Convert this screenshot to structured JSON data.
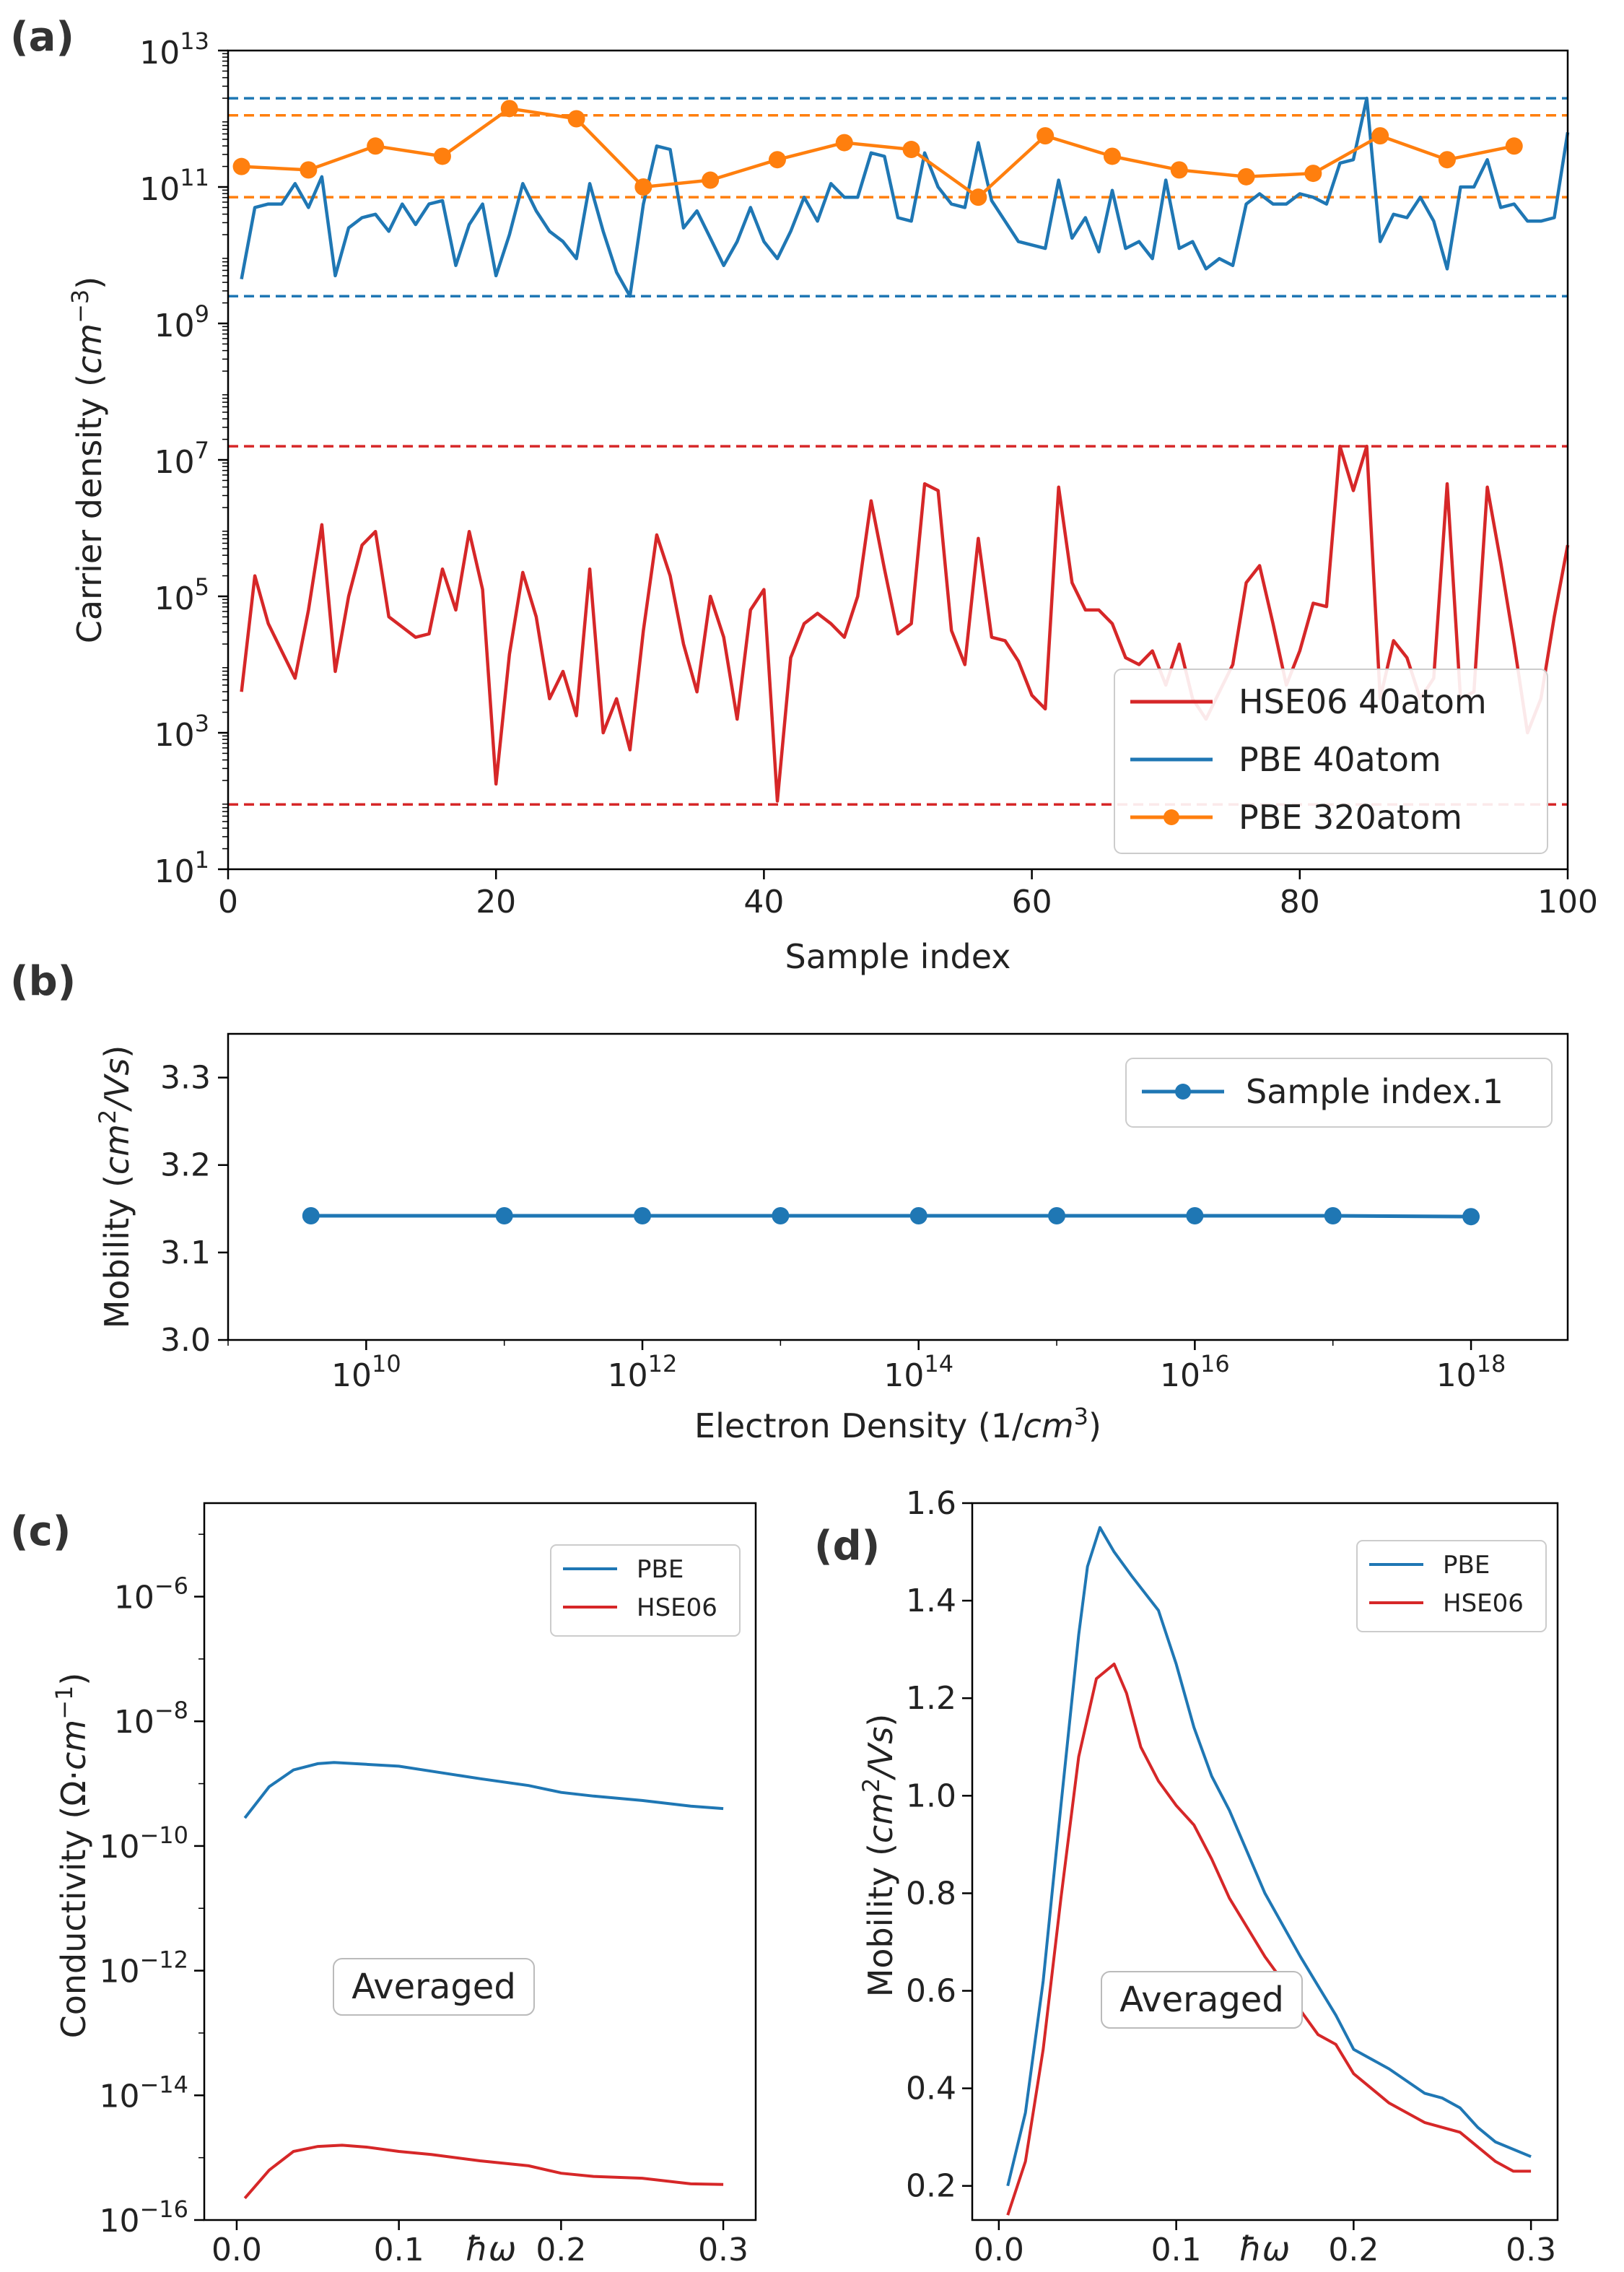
{
  "chart_data": [
    {
      "panel": "(a)",
      "type": "line",
      "xlabel": "Sample index",
      "ylabel_main": "Carrier density (",
      "ylabel_unit": "cm",
      "ylabel_exp": "−3",
      "ylabel_close": ")",
      "yscale": "log",
      "xlim": [
        0,
        100
      ],
      "ylim_exp": [
        1,
        13
      ],
      "x_ticks": [
        "0",
        "20",
        "40",
        "60",
        "80",
        "100"
      ],
      "y_tick_exps": [
        "1",
        "3",
        "5",
        "7",
        "9",
        "11",
        "13"
      ],
      "colors": {
        "hse": "#d62728",
        "pbe": "#1f77b4",
        "pbe320": "#ff7f0e"
      },
      "legend": [
        "HSE06 40atom",
        "PBE 40atom",
        "PBE 320atom"
      ],
      "reference_lines": [
        {
          "series": "PBE 40atom",
          "log10": 12.3
        },
        {
          "series": "PBE 40atom",
          "log10": 9.4
        },
        {
          "series": "PBE 320atom",
          "log10": 12.05
        },
        {
          "series": "PBE 320atom",
          "log10": 10.85
        },
        {
          "series": "HSE06 40atom",
          "log10": 7.2
        },
        {
          "series": "HSE06 40atom",
          "log10": 1.95
        }
      ],
      "series": [
        {
          "name": "HSE06 40atom",
          "x": [
            1,
            2,
            3,
            4,
            5,
            6,
            7,
            8,
            9,
            10,
            11,
            12,
            13,
            14,
            15,
            16,
            17,
            18,
            19,
            20,
            21,
            22,
            23,
            24,
            25,
            26,
            27,
            28,
            29,
            30,
            31,
            32,
            33,
            34,
            35,
            36,
            37,
            38,
            39,
            40,
            41,
            42,
            43,
            44,
            45,
            46,
            47,
            48,
            49,
            50,
            51,
            52,
            53,
            54,
            55,
            56,
            57,
            58,
            59,
            60,
            61,
            62,
            63,
            64,
            65,
            66,
            67,
            68,
            69,
            70,
            71,
            72,
            73,
            74,
            75,
            76,
            77,
            78,
            79,
            80,
            81,
            82,
            83,
            84,
            85,
            86,
            87,
            88,
            89,
            90,
            91,
            92,
            93,
            94,
            95,
            96,
            97,
            98,
            99,
            100
          ],
          "log10_y": [
            3.6,
            5.3,
            4.6,
            4.2,
            3.8,
            4.8,
            6.05,
            3.9,
            5.0,
            5.75,
            5.95,
            4.7,
            4.55,
            4.4,
            4.45,
            5.4,
            4.8,
            5.95,
            5.1,
            2.25,
            4.15,
            5.35,
            4.7,
            3.5,
            3.9,
            3.25,
            5.4,
            3.0,
            3.5,
            2.75,
            4.5,
            5.9,
            5.3,
            4.3,
            3.6,
            5.0,
            4.4,
            3.2,
            4.8,
            5.1,
            2.0,
            4.1,
            4.6,
            4.75,
            4.6,
            4.4,
            5.0,
            6.4,
            5.4,
            4.45,
            4.6,
            6.65,
            6.55,
            4.5,
            4.0,
            5.85,
            4.4,
            4.35,
            4.05,
            3.55,
            3.35,
            6.6,
            5.2,
            4.8,
            4.8,
            4.6,
            4.1,
            4.0,
            4.2,
            3.7,
            4.3,
            3.5,
            3.2,
            3.6,
            4.0,
            5.2,
            5.45,
            4.6,
            3.7,
            4.2,
            4.9,
            4.85,
            7.2,
            6.55,
            7.2,
            3.5,
            4.35,
            4.1,
            3.5,
            3.8,
            6.65,
            3.5,
            3.6,
            6.6,
            5.5,
            4.3,
            3.0,
            3.5,
            4.7,
            5.75
          ]
        },
        {
          "name": "PBE 40atom",
          "x": [
            1,
            2,
            3,
            4,
            5,
            6,
            7,
            8,
            9,
            10,
            11,
            12,
            13,
            14,
            15,
            16,
            17,
            18,
            19,
            20,
            21,
            22,
            23,
            24,
            25,
            26,
            27,
            28,
            29,
            30,
            31,
            32,
            33,
            34,
            35,
            36,
            37,
            38,
            39,
            40,
            41,
            42,
            43,
            44,
            45,
            46,
            47,
            48,
            49,
            50,
            51,
            52,
            53,
            54,
            55,
            56,
            57,
            58,
            59,
            60,
            61,
            62,
            63,
            64,
            65,
            66,
            67,
            68,
            69,
            70,
            71,
            72,
            73,
            74,
            75,
            76,
            77,
            78,
            79,
            80,
            81,
            82,
            83,
            84,
            85,
            86,
            87,
            88,
            89,
            90,
            91,
            92,
            93,
            94,
            95,
            96,
            97,
            98,
            99,
            100
          ],
          "log10_y": [
            9.65,
            10.7,
            10.75,
            10.75,
            11.05,
            10.7,
            11.15,
            9.7,
            10.4,
            10.55,
            10.6,
            10.35,
            10.75,
            10.45,
            10.75,
            10.8,
            9.85,
            10.45,
            10.75,
            9.7,
            10.3,
            11.05,
            10.65,
            10.35,
            10.2,
            9.95,
            11.05,
            10.35,
            9.75,
            9.4,
            10.75,
            11.6,
            11.55,
            10.4,
            10.65,
            10.25,
            9.85,
            10.2,
            10.7,
            10.2,
            9.95,
            10.35,
            10.85,
            10.5,
            11.05,
            10.85,
            10.85,
            11.5,
            11.45,
            10.55,
            10.5,
            11.5,
            11.0,
            10.75,
            10.7,
            11.65,
            10.8,
            10.5,
            10.2,
            10.15,
            10.1,
            11.1,
            10.25,
            10.55,
            10.05,
            10.95,
            10.1,
            10.2,
            9.95,
            11.1,
            10.1,
            10.2,
            9.8,
            9.95,
            9.85,
            10.75,
            10.9,
            10.75,
            10.75,
            10.9,
            10.85,
            10.75,
            11.35,
            11.4,
            12.3,
            10.2,
            10.6,
            10.55,
            10.85,
            10.5,
            9.8,
            11.0,
            11.0,
            11.4,
            10.7,
            10.75,
            10.5,
            10.5,
            10.55,
            11.8
          ]
        },
        {
          "name": "PBE 320atom",
          "x": [
            1,
            6,
            11,
            16,
            21,
            26,
            31,
            36,
            41,
            46,
            51,
            56,
            61,
            66,
            71,
            76,
            81,
            86,
            91,
            96
          ],
          "log10_y": [
            11.3,
            11.25,
            11.6,
            11.45,
            12.15,
            12.0,
            11.0,
            11.1,
            11.4,
            11.65,
            11.55,
            10.85,
            11.75,
            11.45,
            11.25,
            11.15,
            11.2,
            11.75,
            11.4,
            11.6
          ]
        }
      ]
    },
    {
      "panel": "(b)",
      "type": "line",
      "xlabel_main": "Electron Density (1/",
      "xlabel_unit": "cm",
      "xlabel_exp": "3",
      "xlabel_close": ")",
      "ylabel_main": "Mobility (",
      "ylabel_unit": "cm",
      "ylabel_exp": "2",
      "ylabel_rest": "/Vs",
      "ylabel_close": ")",
      "xscale": "log",
      "xlim_log10": [
        9,
        18.7
      ],
      "ylim": [
        3.0,
        3.35
      ],
      "x_tick_exps": [
        "10",
        "12",
        "14",
        "16",
        "18"
      ],
      "y_ticks": [
        "3.0",
        "3.1",
        "3.2",
        "3.3"
      ],
      "colors": {
        "line": "#1f77b4"
      },
      "legend": [
        "Sample index.1"
      ],
      "series": [
        {
          "name": "Sample index.1",
          "log10_x": [
            9.6,
            11,
            12,
            13,
            14,
            15,
            16,
            17,
            18
          ],
          "y": [
            3.142,
            3.142,
            3.142,
            3.142,
            3.142,
            3.142,
            3.142,
            3.142,
            3.141
          ]
        }
      ]
    },
    {
      "panel": "(c)",
      "type": "line",
      "xlabel": "ħω",
      "ylabel_main": "Conductivity (Ω·",
      "ylabel_unit": "cm",
      "ylabel_exp": "−1",
      "ylabel_close": ")",
      "yscale": "log",
      "xlim": [
        -0.02,
        0.32
      ],
      "ylim_exp": [
        -16,
        -4.5
      ],
      "x_ticks": [
        "0.0",
        "0.1",
        "0.2",
        "0.3"
      ],
      "y_tick_exps": [
        "−6",
        "−8",
        "−10",
        "−12",
        "−14",
        "−16"
      ],
      "colors": {
        "pbe": "#1f77b4",
        "hse": "#d62728"
      },
      "legend": [
        "PBE",
        "HSE06"
      ],
      "annotation": "Averaged",
      "series": [
        {
          "name": "PBE",
          "x": [
            0.005,
            0.02,
            0.035,
            0.05,
            0.06,
            0.08,
            0.1,
            0.12,
            0.15,
            0.18,
            0.2,
            0.22,
            0.25,
            0.28,
            0.3
          ],
          "log10_y": [
            -9.55,
            -9.05,
            -8.78,
            -8.68,
            -8.66,
            -8.69,
            -8.72,
            -8.8,
            -8.92,
            -9.03,
            -9.14,
            -9.2,
            -9.27,
            -9.36,
            -9.4
          ]
        },
        {
          "name": "HSE06",
          "x": [
            0.005,
            0.02,
            0.035,
            0.05,
            0.065,
            0.08,
            0.1,
            0.12,
            0.15,
            0.18,
            0.2,
            0.22,
            0.25,
            0.28,
            0.3
          ],
          "log10_y": [
            -15.65,
            -15.2,
            -14.9,
            -14.82,
            -14.8,
            -14.83,
            -14.9,
            -14.95,
            -15.05,
            -15.13,
            -15.25,
            -15.3,
            -15.33,
            -15.42,
            -15.43
          ]
        }
      ]
    },
    {
      "panel": "(d)",
      "type": "line",
      "xlabel": "ħω",
      "ylabel_main": "Mobility (",
      "ylabel_unit": "cm",
      "ylabel_exp": "2",
      "ylabel_rest": "/Vs",
      "ylabel_close": ")",
      "xlim": [
        -0.015,
        0.315
      ],
      "ylim": [
        0.13,
        1.6
      ],
      "x_ticks": [
        "0.0",
        "0.1",
        "0.2",
        "0.3"
      ],
      "y_ticks": [
        "0.2",
        "0.4",
        "0.6",
        "0.8",
        "1.0",
        "1.2",
        "1.4",
        "1.6"
      ],
      "colors": {
        "pbe": "#1f77b4",
        "hse": "#d62728"
      },
      "legend": [
        "PBE",
        "HSE06"
      ],
      "annotation": "Averaged",
      "series": [
        {
          "name": "PBE",
          "x": [
            0.005,
            0.015,
            0.025,
            0.035,
            0.045,
            0.05,
            0.057,
            0.065,
            0.075,
            0.09,
            0.1,
            0.11,
            0.12,
            0.13,
            0.15,
            0.17,
            0.18,
            0.19,
            0.2,
            0.22,
            0.24,
            0.25,
            0.26,
            0.27,
            0.28,
            0.3
          ],
          "y": [
            0.2,
            0.35,
            0.62,
            0.98,
            1.33,
            1.47,
            1.55,
            1.5,
            1.45,
            1.38,
            1.27,
            1.14,
            1.04,
            0.97,
            0.8,
            0.67,
            0.61,
            0.55,
            0.48,
            0.44,
            0.39,
            0.38,
            0.36,
            0.32,
            0.29,
            0.26
          ]
        },
        {
          "name": "HSE06",
          "x": [
            0.005,
            0.015,
            0.025,
            0.035,
            0.045,
            0.055,
            0.065,
            0.072,
            0.08,
            0.09,
            0.1,
            0.11,
            0.12,
            0.13,
            0.15,
            0.16,
            0.17,
            0.18,
            0.19,
            0.2,
            0.22,
            0.24,
            0.26,
            0.27,
            0.28,
            0.29,
            0.3
          ],
          "y": [
            0.14,
            0.25,
            0.48,
            0.79,
            1.08,
            1.24,
            1.27,
            1.21,
            1.1,
            1.03,
            0.98,
            0.94,
            0.87,
            0.79,
            0.67,
            0.62,
            0.56,
            0.51,
            0.49,
            0.43,
            0.37,
            0.33,
            0.31,
            0.28,
            0.25,
            0.23,
            0.23
          ]
        }
      ]
    }
  ]
}
